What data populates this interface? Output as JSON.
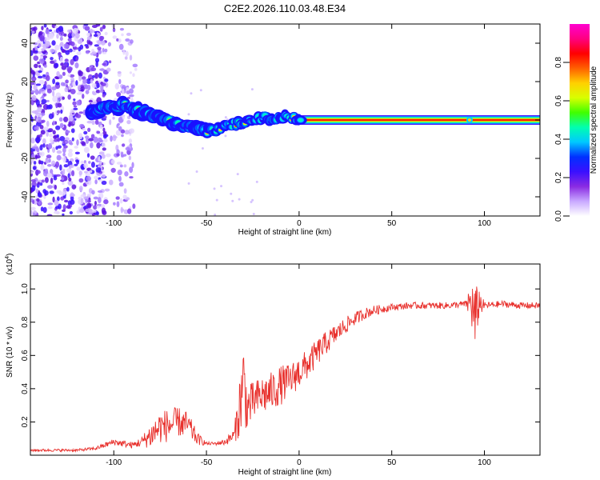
{
  "figure_title": "C2E2.2026.110.03.48.E34",
  "colorbar": {
    "label": "Normalized spectral amplitude",
    "ticks": [
      "0.0",
      "0.2",
      "0.4",
      "0.6",
      "0.8"
    ],
    "tick_values": [
      0.0,
      0.2,
      0.4,
      0.6,
      0.8
    ],
    "range": [
      0,
      1
    ],
    "colors": [
      "#ffffff",
      "#c8a8ff",
      "#8a2be2",
      "#3a10ff",
      "#0030ff",
      "#00c8ff",
      "#00ffb0",
      "#40ff00",
      "#d8ff00",
      "#ffd000",
      "#ff6000",
      "#ff0000",
      "#ff0080",
      "#ff00d0"
    ]
  },
  "chart_data": [
    {
      "type": "heatmap",
      "title": "",
      "xlabel": "Height of straight line (km)",
      "ylabel": "Frequency (Hz)",
      "xlim": [
        -145,
        130
      ],
      "ylim": [
        -50,
        50
      ],
      "x_ticks": [
        -100,
        -50,
        0,
        50,
        100
      ],
      "x_tick_labels": [
        "-100",
        "-50",
        "0",
        "50",
        "100"
      ],
      "y_ticks": [
        -40,
        -20,
        0,
        20,
        40
      ],
      "y_tick_labels": [
        "-40",
        "-20",
        "0",
        "20",
        "40"
      ],
      "ridge": {
        "x": [
          -112,
          -105,
          -100,
          -95,
          -90,
          -85,
          -80,
          -75,
          -70,
          -65,
          -60,
          -55,
          -50,
          -45,
          -40,
          -35,
          -30,
          -25,
          -20,
          -15,
          -10,
          -5,
          0,
          10,
          20,
          50,
          90,
          95,
          100,
          130
        ],
        "y": [
          5,
          6,
          7,
          8,
          6,
          4,
          3,
          1,
          -1,
          -2,
          -3,
          -5,
          -6,
          -5,
          -3,
          -2,
          -1,
          0,
          1,
          1,
          2,
          1,
          0,
          0,
          0,
          0,
          0,
          0,
          0,
          0
        ]
      },
      "noise_region_x": [
        -145,
        -88
      ],
      "grid": false,
      "colors": {
        "band_core": "#ff0000",
        "band_edge": "#00ffb0",
        "noise": "#7a3cf0"
      }
    },
    {
      "type": "line",
      "title": "",
      "xlabel": "Height of straight line (km)",
      "ylabel": "SNR (10 * v/v)",
      "y_multiplier": "(x10",
      "y_multiplier_exp": "4",
      "y_multiplier_close": ")",
      "xlim": [
        -145,
        130
      ],
      "ylim": [
        0,
        1.15
      ],
      "x_ticks": [
        -100,
        -50,
        0,
        50,
        100
      ],
      "x_tick_labels": [
        "-100",
        "-50",
        "0",
        "50",
        "100"
      ],
      "y_ticks": [
        0.2,
        0.4,
        0.6,
        0.8,
        1.0
      ],
      "y_tick_labels": [
        "0.2",
        "0.4",
        "0.6",
        "0.8",
        "1.0"
      ],
      "grid": false,
      "color": "#e8302c",
      "series": [
        {
          "x": [
            -145,
            -120,
            -110,
            -100,
            -95,
            -90,
            -85,
            -80,
            -75,
            -70,
            -65,
            -60,
            -55,
            -50,
            -45,
            -40,
            -35,
            -32,
            -30,
            -28,
            -25,
            -20,
            -15,
            -10,
            -5,
            0,
            5,
            10,
            15,
            20,
            25,
            30,
            35,
            40,
            50,
            60,
            70,
            80,
            90,
            93,
            95,
            97,
            100,
            110,
            120,
            130
          ],
          "y": [
            0.03,
            0.03,
            0.04,
            0.08,
            0.07,
            0.06,
            0.08,
            0.12,
            0.17,
            0.18,
            0.2,
            0.18,
            0.1,
            0.07,
            0.07,
            0.08,
            0.12,
            0.3,
            0.45,
            0.28,
            0.32,
            0.36,
            0.38,
            0.42,
            0.45,
            0.5,
            0.55,
            0.62,
            0.68,
            0.73,
            0.78,
            0.82,
            0.85,
            0.87,
            0.89,
            0.9,
            0.9,
            0.9,
            0.91,
            0.92,
            0.8,
            0.92,
            0.9,
            0.91,
            0.9,
            0.9
          ],
          "noise": [
            0.008,
            0.008,
            0.01,
            0.02,
            0.02,
            0.02,
            0.03,
            0.08,
            0.1,
            0.1,
            0.09,
            0.08,
            0.04,
            0.01,
            0.01,
            0.02,
            0.04,
            0.2,
            0.25,
            0.15,
            0.12,
            0.12,
            0.12,
            0.12,
            0.1,
            0.1,
            0.09,
            0.08,
            0.07,
            0.06,
            0.05,
            0.04,
            0.035,
            0.03,
            0.02,
            0.02,
            0.02,
            0.02,
            0.02,
            0.15,
            0.22,
            0.1,
            0.02,
            0.02,
            0.02,
            0.02
          ]
        }
      ]
    }
  ]
}
